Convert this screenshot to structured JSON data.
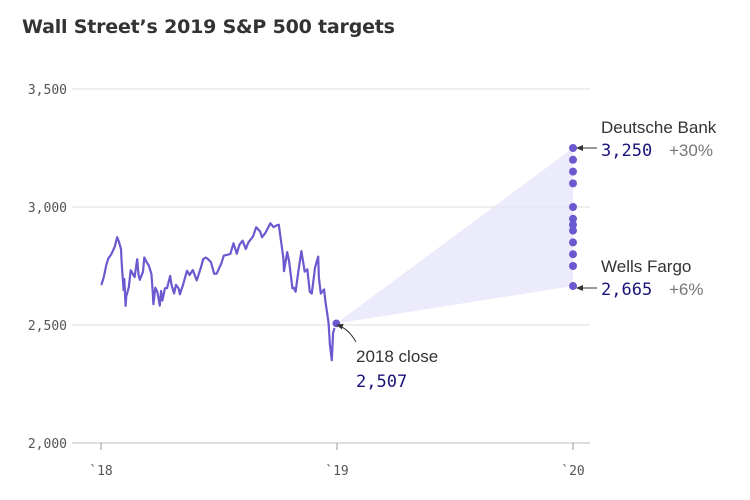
{
  "title": "Wall Street’s 2019 S&P 500 targets",
  "chart_data": {
    "type": "line",
    "title": "Wall Street’s 2019 S&P 500 targets",
    "xlabel": "",
    "ylabel": "",
    "ylim": [
      2000,
      3500
    ],
    "xlim": [
      "2018-01-01",
      "2020-01-01"
    ],
    "y_ticks": [
      "2,000",
      "2,500",
      "3,000",
      "3,500"
    ],
    "x_ticks": [
      "`18",
      "`19",
      "`20"
    ],
    "grid": true,
    "colors": {
      "line": "#6b59d0",
      "points": "#6b59d0",
      "fan": "#e6e4fa",
      "value_text": "#1a137a"
    },
    "series": [
      {
        "values": [
          [
            "2018-01-02",
            2673
          ],
          [
            "2018-01-05",
            2700
          ],
          [
            "2018-01-09",
            2752
          ],
          [
            "2018-01-12",
            2780
          ],
          [
            "2018-01-17",
            2800
          ],
          [
            "2018-01-22",
            2830
          ],
          [
            "2018-01-26",
            2872
          ],
          [
            "2018-01-29",
            2850
          ],
          [
            "2018-02-01",
            2822
          ],
          [
            "2018-02-02",
            2762
          ],
          [
            "2018-02-05",
            2648
          ],
          [
            "2018-02-06",
            2695
          ],
          [
            "2018-02-08",
            2581
          ],
          [
            "2018-02-09",
            2620
          ],
          [
            "2018-02-13",
            2660
          ],
          [
            "2018-02-16",
            2732
          ],
          [
            "2018-02-22",
            2703
          ],
          [
            "2018-02-26",
            2779
          ],
          [
            "2018-02-28",
            2713
          ],
          [
            "2018-03-02",
            2691
          ],
          [
            "2018-03-07",
            2726
          ],
          [
            "2018-03-09",
            2786
          ],
          [
            "2018-03-13",
            2765
          ],
          [
            "2018-03-16",
            2752
          ],
          [
            "2018-03-20",
            2717
          ],
          [
            "2018-03-22",
            2643
          ],
          [
            "2018-03-23",
            2588
          ],
          [
            "2018-03-26",
            2658
          ],
          [
            "2018-03-29",
            2641
          ],
          [
            "2018-04-02",
            2582
          ],
          [
            "2018-04-04",
            2644
          ],
          [
            "2018-04-06",
            2604
          ],
          [
            "2018-04-10",
            2656
          ],
          [
            "2018-04-13",
            2656
          ],
          [
            "2018-04-18",
            2708
          ],
          [
            "2018-04-20",
            2670
          ],
          [
            "2018-04-24",
            2634
          ],
          [
            "2018-04-27",
            2670
          ],
          [
            "2018-05-01",
            2655
          ],
          [
            "2018-05-03",
            2630
          ],
          [
            "2018-05-08",
            2671
          ],
          [
            "2018-05-14",
            2730
          ],
          [
            "2018-05-18",
            2712
          ],
          [
            "2018-05-23",
            2733
          ],
          [
            "2018-05-29",
            2689
          ],
          [
            "2018-05-31",
            2705
          ],
          [
            "2018-06-05",
            2748
          ],
          [
            "2018-06-08",
            2779
          ],
          [
            "2018-06-12",
            2786
          ],
          [
            "2018-06-15",
            2780
          ],
          [
            "2018-06-20",
            2767
          ],
          [
            "2018-06-25",
            2717
          ],
          [
            "2018-06-29",
            2718
          ],
          [
            "2018-07-06",
            2760
          ],
          [
            "2018-07-10",
            2794
          ],
          [
            "2018-07-16",
            2798
          ],
          [
            "2018-07-20",
            2801
          ],
          [
            "2018-07-25",
            2846
          ],
          [
            "2018-07-30",
            2802
          ],
          [
            "2018-08-03",
            2840
          ],
          [
            "2018-08-08",
            2857
          ],
          [
            "2018-08-13",
            2822
          ],
          [
            "2018-08-17",
            2850
          ],
          [
            "2018-08-24",
            2874
          ],
          [
            "2018-08-29",
            2914
          ],
          [
            "2018-09-04",
            2896
          ],
          [
            "2018-09-07",
            2872
          ],
          [
            "2018-09-12",
            2889
          ],
          [
            "2018-09-20",
            2931
          ],
          [
            "2018-09-25",
            2915
          ],
          [
            "2018-10-01",
            2924
          ],
          [
            "2018-10-03",
            2925
          ],
          [
            "2018-10-05",
            2885
          ],
          [
            "2018-10-10",
            2785
          ],
          [
            "2018-10-11",
            2728
          ],
          [
            "2018-10-16",
            2809
          ],
          [
            "2018-10-19",
            2767
          ],
          [
            "2018-10-24",
            2656
          ],
          [
            "2018-10-26",
            2658
          ],
          [
            "2018-10-29",
            2641
          ],
          [
            "2018-11-02",
            2723
          ],
          [
            "2018-11-07",
            2813
          ],
          [
            "2018-11-12",
            2726
          ],
          [
            "2018-11-16",
            2736
          ],
          [
            "2018-11-20",
            2641
          ],
          [
            "2018-11-23",
            2633
          ],
          [
            "2018-11-28",
            2743
          ],
          [
            "2018-12-03",
            2790
          ],
          [
            "2018-12-04",
            2700
          ],
          [
            "2018-12-07",
            2633
          ],
          [
            "2018-12-12",
            2651
          ],
          [
            "2018-12-14",
            2600
          ],
          [
            "2018-12-17",
            2546
          ],
          [
            "2018-12-19",
            2507
          ],
          [
            "2018-12-21",
            2417
          ],
          [
            "2018-12-24",
            2351
          ],
          [
            "2018-12-26",
            2467
          ],
          [
            "2018-12-28",
            2486
          ],
          [
            "2018-12-31",
            2507
          ]
        ]
      }
    ],
    "targets_2019": [
      3250,
      3200,
      3150,
      3100,
      3000,
      2950,
      2925,
      2900,
      2850,
      2800,
      2750,
      2665
    ],
    "fan_from": {
      "date": "2018-12-31",
      "value": 2507
    },
    "fan_to_date": "2020-01-01",
    "annotations": {
      "close": {
        "label": "2018 close",
        "value": "2,507"
      },
      "high": {
        "label": "Deutsche Bank",
        "value": "3,250",
        "change": "+30%"
      },
      "low": {
        "label": "Wells Fargo",
        "value": "2,665",
        "change": "+6%"
      }
    }
  }
}
